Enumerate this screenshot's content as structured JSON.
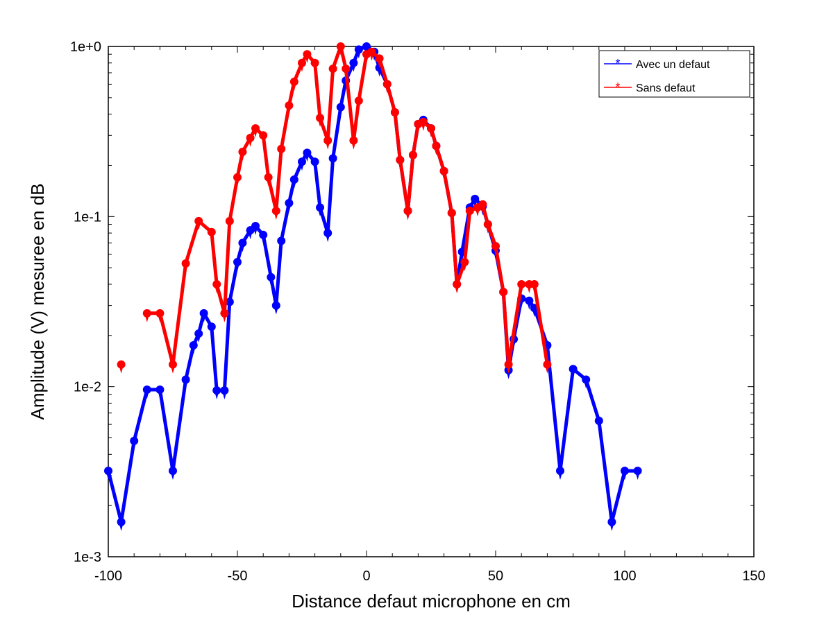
{
  "chart_data": {
    "type": "line",
    "xlabel": "Distance defaut microphone en cm",
    "ylabel": "Amplitude (V) mesuree en dB",
    "xlim": [
      -100,
      150
    ],
    "ylim": [
      0.001,
      1
    ],
    "yscale": "log",
    "grid": false,
    "legend_position": "top-right",
    "x_ticks": [
      -100,
      -50,
      0,
      50,
      100,
      150
    ],
    "x_tick_labels": [
      "-100",
      "-50",
      "0",
      "50",
      "100",
      "150"
    ],
    "y_ticks": [
      1,
      0.1,
      0.01,
      0.001
    ],
    "y_tick_labels": [
      "1e+0",
      "1e-1",
      "1e-2",
      "1e-3"
    ],
    "series": [
      {
        "name": "Avec un defaut",
        "color": "#0000ff",
        "marker": "asterisk",
        "points": [
          [
            -100,
            0.0032
          ],
          [
            -95,
            0.0016
          ],
          [
            -90,
            0.0048
          ],
          [
            -85,
            0.0096
          ],
          [
            -80,
            0.0096
          ],
          [
            -75,
            0.0032
          ],
          [
            -70,
            0.011
          ],
          [
            -67,
            0.0175
          ],
          [
            -65,
            0.0205
          ],
          [
            -63,
            0.027
          ],
          [
            -60,
            0.0225
          ],
          [
            -58,
            0.0095
          ],
          [
            -55,
            0.0095
          ],
          [
            -53,
            0.0315
          ],
          [
            -50,
            0.054
          ],
          [
            -48,
            0.07
          ],
          [
            -45,
            0.083
          ],
          [
            -43,
            0.088
          ],
          [
            -40,
            0.078
          ],
          [
            -37,
            0.044
          ],
          [
            -35,
            0.03
          ],
          [
            -33,
            0.072
          ],
          [
            -30,
            0.12
          ],
          [
            -28,
            0.165
          ],
          [
            -25,
            0.21
          ],
          [
            -23,
            0.237
          ],
          [
            -20,
            0.21
          ],
          [
            -18,
            0.113
          ],
          [
            -15,
            0.08
          ],
          [
            -13,
            0.22
          ],
          [
            -10,
            0.44
          ],
          [
            -8,
            0.63
          ],
          [
            -5,
            0.8
          ],
          [
            -3,
            0.96
          ],
          [
            0,
            1.0
          ],
          [
            3,
            0.93
          ],
          [
            5,
            0.75
          ],
          [
            8,
            0.6
          ],
          [
            11,
            0.41
          ],
          [
            13,
            0.215
          ],
          [
            16,
            0.108
          ],
          [
            18,
            0.23
          ],
          [
            20,
            0.35
          ],
          [
            22,
            0.37
          ],
          [
            25,
            0.33
          ],
          [
            27,
            0.26
          ],
          [
            30,
            0.185
          ],
          [
            33,
            0.105
          ],
          [
            35,
            0.04
          ],
          [
            37,
            0.062
          ],
          [
            40,
            0.113
          ],
          [
            42,
            0.127
          ],
          [
            45,
            0.115
          ],
          [
            47,
            0.09
          ],
          [
            50,
            0.063
          ],
          [
            53,
            0.036
          ],
          [
            55,
            0.0125
          ],
          [
            57,
            0.019
          ],
          [
            60,
            0.033
          ],
          [
            63,
            0.032
          ],
          [
            65,
            0.029
          ],
          [
            70,
            0.0175
          ],
          [
            75,
            0.0032
          ],
          [
            80,
            0.0127
          ],
          [
            85,
            0.011
          ],
          [
            90,
            0.0063
          ],
          [
            95,
            0.0016
          ],
          [
            100,
            0.0032
          ],
          [
            105,
            0.0032
          ]
        ]
      },
      {
        "name": "Sans defaut",
        "color": "#ff0000",
        "marker": "asterisk",
        "points": [
          [
            -95,
            0.0135
          ],
          null,
          [
            -85,
            0.027
          ],
          [
            -80,
            0.027
          ],
          [
            -75,
            0.0135
          ],
          [
            -70,
            0.053
          ],
          [
            -65,
            0.094
          ],
          [
            -60,
            0.081
          ],
          [
            -58,
            0.04
          ],
          [
            -55,
            0.027
          ],
          [
            -53,
            0.094
          ],
          [
            -50,
            0.17
          ],
          [
            -48,
            0.24
          ],
          [
            -45,
            0.29
          ],
          [
            -43,
            0.33
          ],
          [
            -40,
            0.3
          ],
          [
            -38,
            0.17
          ],
          [
            -35,
            0.108
          ],
          [
            -33,
            0.25
          ],
          [
            -30,
            0.45
          ],
          [
            -28,
            0.62
          ],
          [
            -25,
            0.8
          ],
          [
            -23,
            0.9
          ],
          [
            -20,
            0.8
          ],
          [
            -18,
            0.38
          ],
          [
            -15,
            0.28
          ],
          [
            -13,
            0.74
          ],
          [
            -10,
            1.0
          ],
          [
            -8,
            0.74
          ],
          [
            -5,
            0.28
          ],
          [
            -3,
            0.48
          ],
          [
            0,
            0.9
          ],
          [
            2,
            0.93
          ],
          [
            5,
            0.85
          ],
          [
            8,
            0.6
          ],
          [
            11,
            0.41
          ],
          [
            13,
            0.215
          ],
          [
            16,
            0.108
          ],
          [
            18,
            0.23
          ],
          [
            20,
            0.35
          ],
          [
            22,
            0.36
          ],
          [
            25,
            0.33
          ],
          [
            27,
            0.26
          ],
          [
            30,
            0.185
          ],
          [
            33,
            0.105
          ],
          [
            35,
            0.04
          ],
          [
            38,
            0.054
          ],
          [
            40,
            0.108
          ],
          [
            43,
            0.113
          ],
          [
            45,
            0.118
          ],
          [
            47,
            0.09
          ],
          [
            50,
            0.067
          ],
          [
            53,
            0.036
          ],
          [
            55,
            0.0135
          ],
          [
            60,
            0.04
          ],
          [
            63,
            0.04
          ],
          [
            65,
            0.04
          ],
          [
            70,
            0.0135
          ]
        ]
      }
    ]
  }
}
